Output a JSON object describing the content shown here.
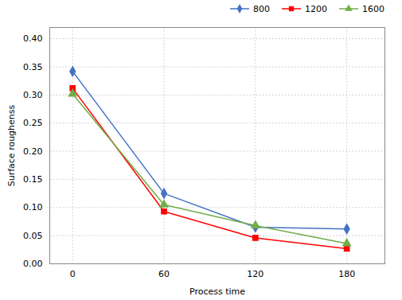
{
  "chart_data": {
    "type": "line",
    "xlabel": "Process time",
    "ylabel": "Surface roughenss",
    "x": [
      0,
      60,
      120,
      180
    ],
    "series": [
      {
        "name": "800",
        "color": "#4472C4",
        "marker": "diamond",
        "values": [
          0.342,
          0.125,
          0.065,
          0.062
        ]
      },
      {
        "name": "1200",
        "color": "#FF0000",
        "marker": "square",
        "values": [
          0.312,
          0.093,
          0.046,
          0.027
        ]
      },
      {
        "name": "1600",
        "color": "#70AD47",
        "marker": "triangle",
        "values": [
          0.302,
          0.105,
          0.068,
          0.036
        ]
      }
    ],
    "xlim": [
      -15,
      205
    ],
    "ylim": [
      0.0,
      0.42
    ],
    "xticks": [
      0,
      60,
      120,
      180
    ],
    "yticks": [
      {
        "value": 0.0,
        "label": "0.00"
      },
      0.05,
      {
        "value": 0.1,
        "label": "0.10"
      },
      0.15,
      {
        "value": 0.2,
        "label": "0.20"
      },
      0.25,
      {
        "value": 0.3,
        "label": "0.30"
      },
      0.35,
      {
        "value": 0.4,
        "label": "0.40"
      }
    ],
    "grid": true,
    "legend": "upper right"
  }
}
